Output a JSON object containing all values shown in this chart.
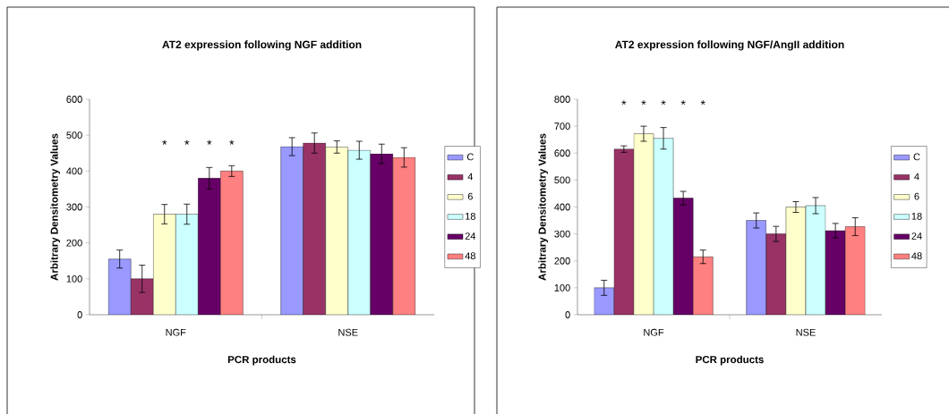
{
  "chart_data": [
    {
      "type": "bar",
      "title": "AT2 expression following NGF addition",
      "xlabel": "PCR products",
      "ylabel": "Arbitrary Densitometry Values",
      "categories": [
        "NGF",
        "NSE"
      ],
      "ylim": [
        0,
        600
      ],
      "yticks": [
        0,
        100,
        200,
        300,
        400,
        500,
        600
      ],
      "legend": "right",
      "grid": false,
      "series": [
        {
          "name": "C",
          "color": "#9999ff",
          "values": [
            155,
            468
          ],
          "errors": [
            25,
            25
          ]
        },
        {
          "name": "4",
          "color": "#993366",
          "values": [
            100,
            478
          ],
          "errors": [
            38,
            28
          ]
        },
        {
          "name": "6",
          "color": "#ffffcc",
          "values": [
            280,
            467
          ],
          "errors": [
            27,
            17
          ]
        },
        {
          "name": "18",
          "color": "#ccffff",
          "values": [
            280,
            458
          ],
          "errors": [
            28,
            25
          ]
        },
        {
          "name": "24",
          "color": "#660066",
          "values": [
            380,
            448
          ],
          "errors": [
            30,
            27
          ]
        },
        {
          "name": "48",
          "color": "#ff8080",
          "values": [
            400,
            438
          ],
          "errors": [
            15,
            27
          ]
        }
      ],
      "annotations": [
        "*",
        "*",
        "*",
        "*"
      ]
    },
    {
      "type": "bar",
      "title": "AT2 expression following NGF/AngII addition",
      "xlabel": "PCR products",
      "ylabel": "Arbitrary Densitometry Values",
      "categories": [
        "NGF",
        "NSE"
      ],
      "ylim": [
        0,
        800
      ],
      "yticks": [
        0,
        100,
        200,
        300,
        400,
        500,
        600,
        700,
        800
      ],
      "legend": "right",
      "grid": false,
      "series": [
        {
          "name": "C",
          "color": "#9999ff",
          "values": [
            100,
            350
          ],
          "errors": [
            28,
            28
          ]
        },
        {
          "name": "4",
          "color": "#993366",
          "values": [
            615,
            300
          ],
          "errors": [
            12,
            28
          ]
        },
        {
          "name": "6",
          "color": "#ffffcc",
          "values": [
            672,
            400
          ],
          "errors": [
            28,
            20
          ]
        },
        {
          "name": "18",
          "color": "#ccffff",
          "values": [
            655,
            405
          ],
          "errors": [
            40,
            30
          ]
        },
        {
          "name": "24",
          "color": "#660066",
          "values": [
            433,
            312
          ],
          "errors": [
            25,
            27
          ]
        },
        {
          "name": "48",
          "color": "#ff8080",
          "values": [
            215,
            327
          ],
          "errors": [
            25,
            33
          ]
        }
      ],
      "annotations": [
        "*",
        "*",
        "*",
        "*",
        "*"
      ]
    }
  ]
}
